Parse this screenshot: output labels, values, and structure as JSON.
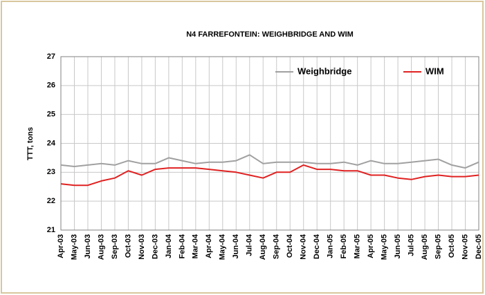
{
  "chart_data": {
    "type": "line",
    "title": "N4 FARREFONTEIN: WEIGHBRIDGE AND WIM",
    "y_label": "TTT, tons",
    "categories": [
      "Apr-03",
      "May-03",
      "Jun-03",
      "Aug-03",
      "Sep-03",
      "Oct-03",
      "Nov-03",
      "Dec-03",
      "Jan-04",
      "Feb-04",
      "Mar-04",
      "Apr-04",
      "May-04",
      "Jun-04",
      "Jul-04",
      "Aug-04",
      "Sep-04",
      "Oct-04",
      "Nov-04",
      "Dec-04",
      "Jan-05",
      "Feb-05",
      "Mar-05",
      "Apr-05",
      "May-05",
      "Jun-05",
      "Jul-05",
      "Aug-05",
      "Sep-05",
      "Oct-05",
      "Nov-05",
      "Dec-05"
    ],
    "series": [
      {
        "name": "Weighbridge",
        "color": "#a0a0a0",
        "values": [
          23.25,
          23.2,
          23.25,
          23.3,
          23.25,
          23.4,
          23.3,
          23.3,
          23.5,
          23.4,
          23.3,
          23.35,
          23.35,
          23.4,
          23.6,
          23.3,
          23.35,
          23.35,
          23.35,
          23.3,
          23.3,
          23.35,
          23.25,
          23.4,
          23.3,
          23.3,
          23.35,
          23.4,
          23.45,
          23.25,
          23.15,
          23.35
        ]
      },
      {
        "name": "WIM",
        "color": "#e02020",
        "values": [
          22.6,
          22.55,
          22.55,
          22.7,
          22.8,
          23.05,
          22.9,
          23.1,
          23.15,
          23.15,
          23.15,
          23.1,
          23.05,
          23.0,
          22.9,
          22.8,
          23.0,
          23.0,
          23.25,
          23.1,
          23.1,
          23.05,
          23.05,
          22.9,
          22.9,
          22.8,
          22.75,
          22.85,
          22.9,
          22.85,
          22.85,
          22.9
        ]
      }
    ],
    "ylim": [
      21,
      27
    ],
    "yticks": [
      21,
      22,
      23,
      24,
      25,
      26,
      27
    ],
    "grid": true,
    "legend": "top-right"
  }
}
